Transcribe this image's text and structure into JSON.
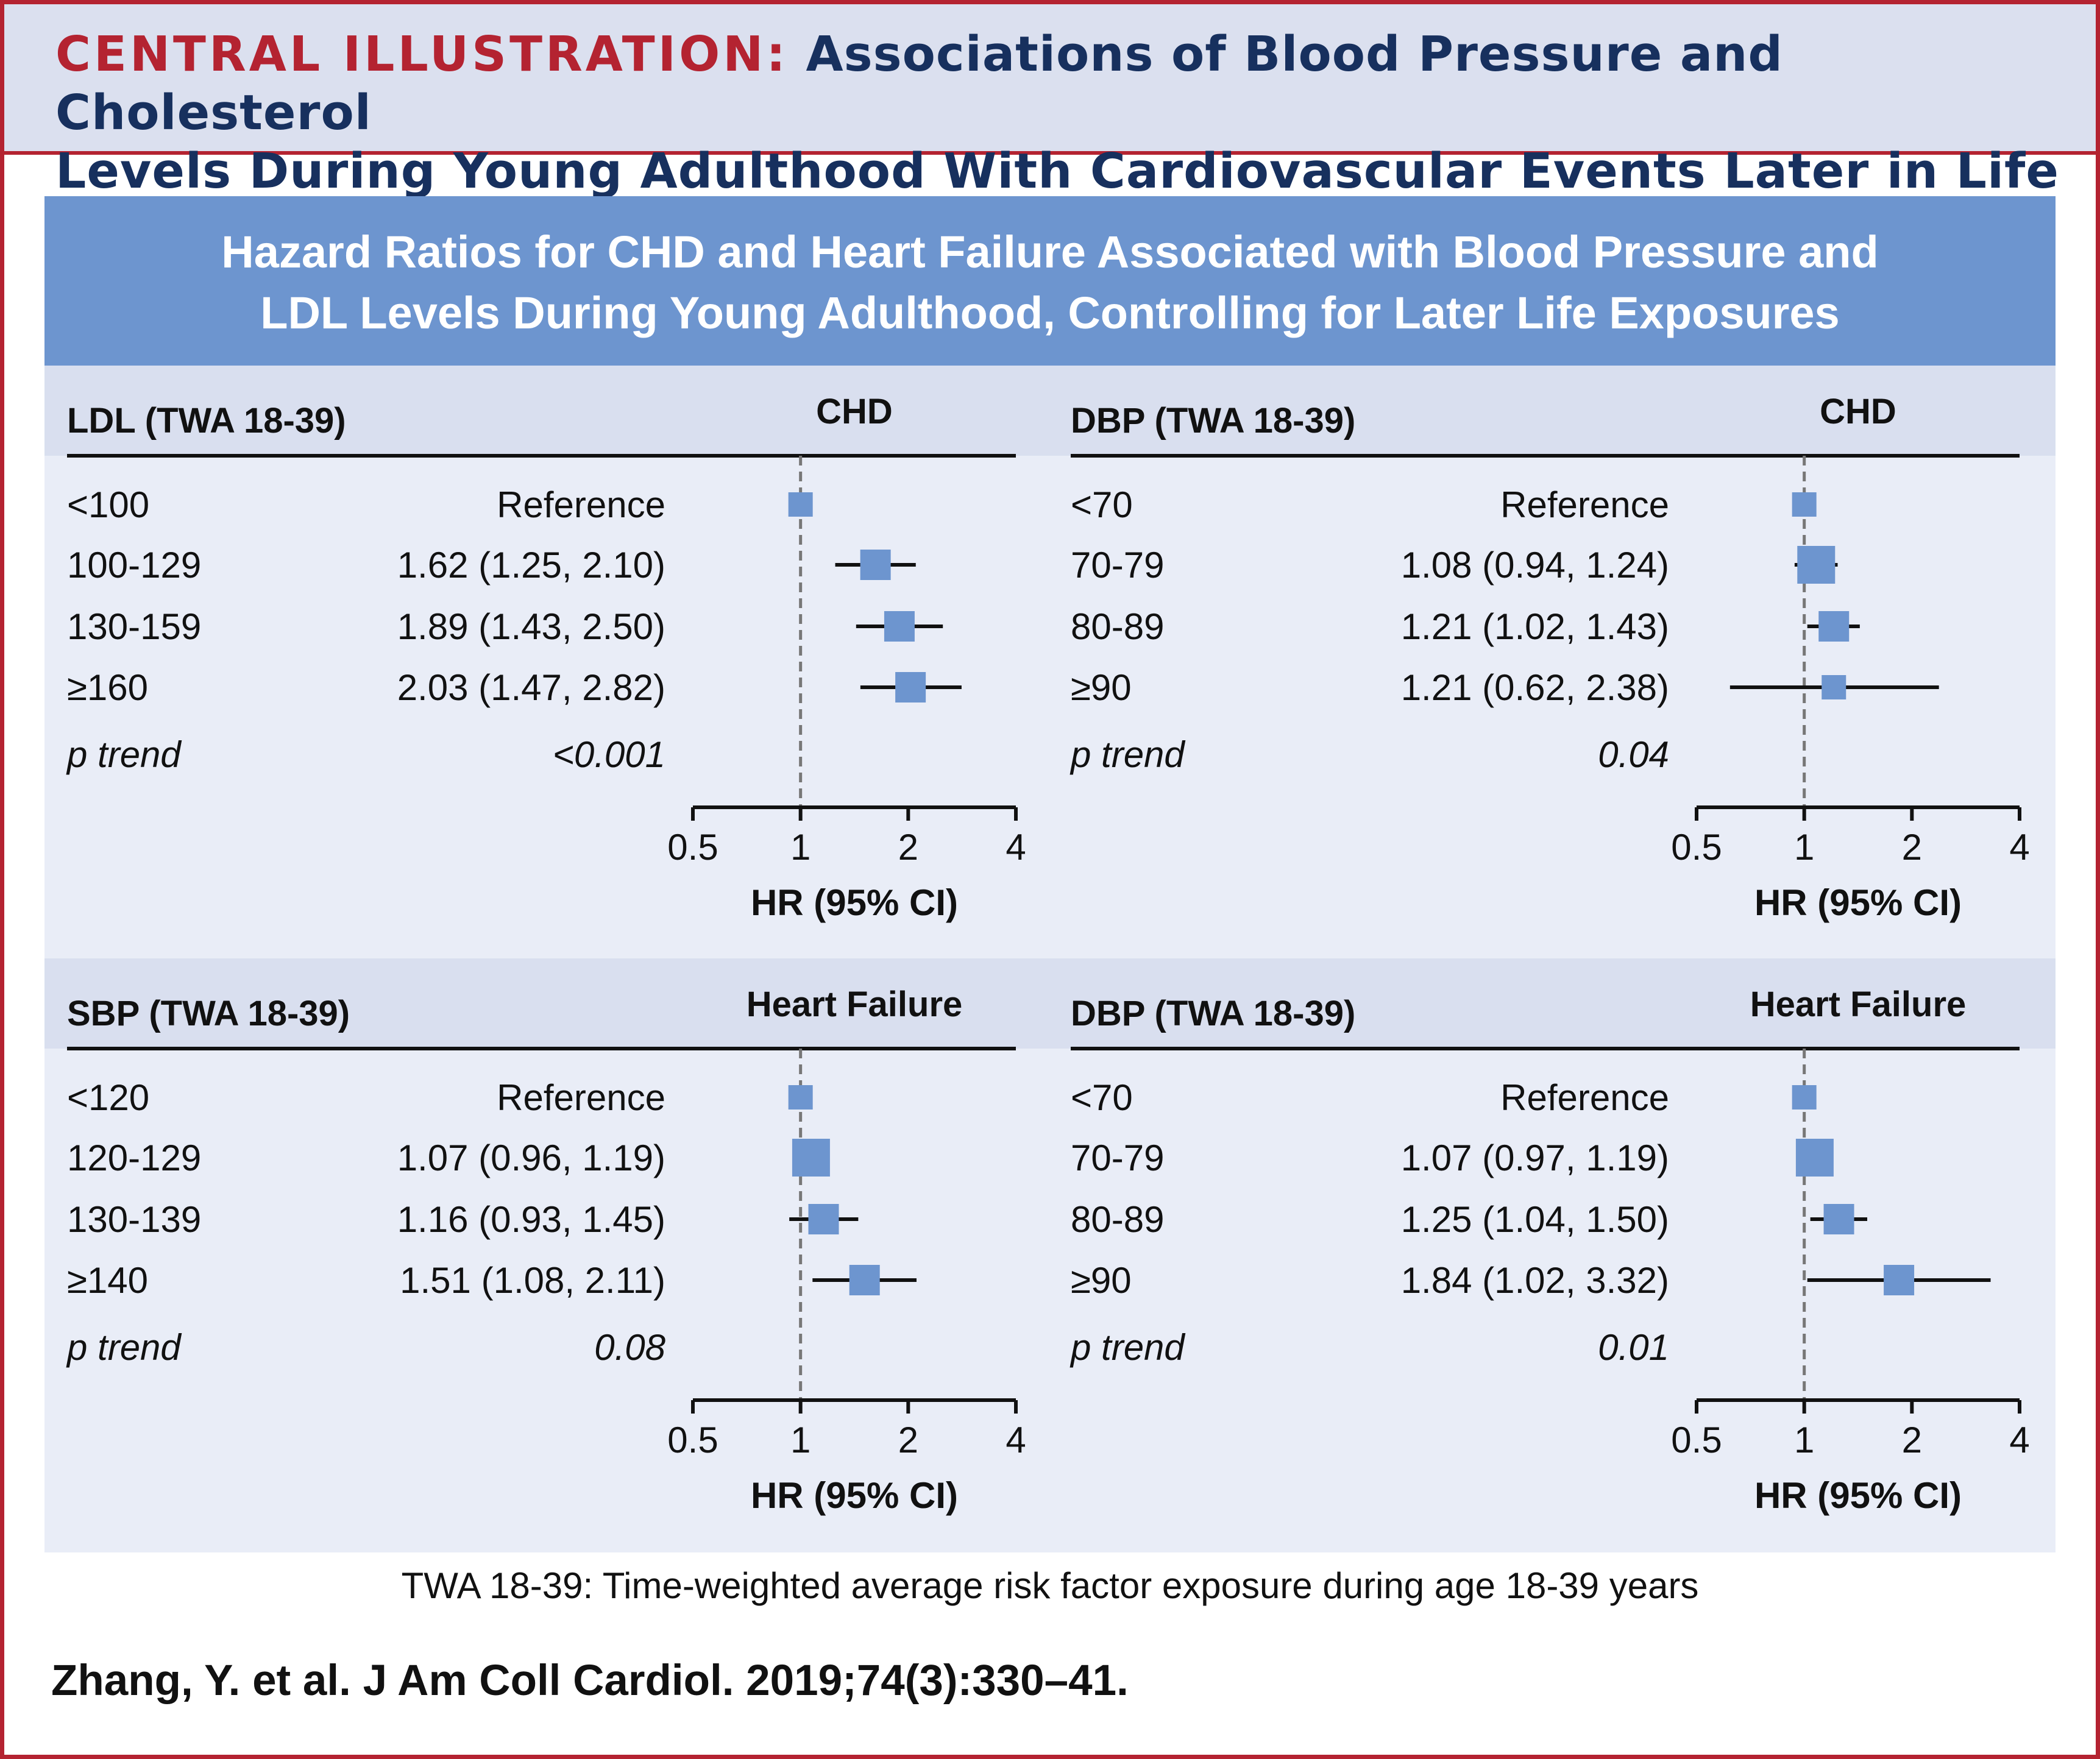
{
  "header": {
    "prefix": "CENTRAL ILLUSTRATION:",
    "title_line1": "Associations of Blood Pressure and Cholesterol",
    "title_line2": "Levels During Young Adulthood With Cardiovascular Events Later in Life"
  },
  "banner": {
    "line1": "Hazard Ratios for CHD and Heart Failure Associated with Blood Pressure and",
    "line2": "LDL Levels During Young Adulthood, Controlling for Later Life Exposures"
  },
  "footnote": "TWA 18-39: Time-weighted average risk factor exposure during age 18-39 years",
  "citation": "Zhang, Y. et al. J Am Coll Cardiol. 2019;74(3):330–41.",
  "colors": {
    "accent_red": "#b42331",
    "navy": "#17305e",
    "banner_blue": "#6d95cf",
    "marker_blue": "#6d95cf"
  },
  "chart_data": [
    {
      "type": "forest",
      "title": "LDL  (TWA 18-39)",
      "outcome": "CHD",
      "xlabel": "HR (95% CI)",
      "xscale": "log",
      "xlim": [
        0.5,
        4
      ],
      "xticks": [
        "0.5",
        "1",
        "2",
        "4"
      ],
      "reference_line": 1,
      "rows": [
        {
          "category": "<100",
          "label": "Reference",
          "hr": 1,
          "lo": null,
          "hi": null,
          "marker": "small"
        },
        {
          "category": "100-129",
          "label": "1.62 (1.25, 2.10)",
          "hr": 1.62,
          "lo": 1.25,
          "hi": 2.1,
          "marker": "medium"
        },
        {
          "category": "130-159",
          "label": "1.89 (1.43, 2.50)",
          "hr": 1.89,
          "lo": 1.43,
          "hi": 2.5,
          "marker": "medium"
        },
        {
          "category": "≥160",
          "label": "2.03 (1.47, 2.82)",
          "hr": 2.03,
          "lo": 1.47,
          "hi": 2.82,
          "marker": "medium"
        }
      ],
      "p_trend_label": "p trend",
      "p_trend": "<0.001"
    },
    {
      "type": "forest",
      "title": "DBP  (TWA 18-39)",
      "outcome": "CHD",
      "xlabel": "HR (95% CI)",
      "xscale": "log",
      "xlim": [
        0.5,
        4
      ],
      "xticks": [
        "0.5",
        "1",
        "2",
        "4"
      ],
      "reference_line": 1,
      "rows": [
        {
          "category": "<70",
          "label": "Reference",
          "hr": 1,
          "lo": null,
          "hi": null,
          "marker": "small"
        },
        {
          "category": "70-79",
          "label": "1.08 (0.94, 1.24)",
          "hr": 1.08,
          "lo": 0.94,
          "hi": 1.24,
          "marker": "large"
        },
        {
          "category": "80-89",
          "label": "1.21 (1.02, 1.43)",
          "hr": 1.21,
          "lo": 1.02,
          "hi": 1.43,
          "marker": "medium"
        },
        {
          "category": "≥90",
          "label": "1.21 (0.62, 2.38)",
          "hr": 1.21,
          "lo": 0.62,
          "hi": 2.38,
          "marker": "small"
        }
      ],
      "p_trend_label": "p trend",
      "p_trend": "0.04"
    },
    {
      "type": "forest",
      "title": "SBP  (TWA 18-39)",
      "outcome": "Heart Failure",
      "xlabel": "HR (95% CI)",
      "xscale": "log",
      "xlim": [
        0.5,
        4
      ],
      "xticks": [
        "0.5",
        "1",
        "2",
        "4"
      ],
      "reference_line": 1,
      "rows": [
        {
          "category": "<120",
          "label": "Reference",
          "hr": 1,
          "lo": null,
          "hi": null,
          "marker": "small"
        },
        {
          "category": "120-129",
          "label": "1.07 (0.96, 1.19)",
          "hr": 1.07,
          "lo": 0.96,
          "hi": 1.19,
          "marker": "large"
        },
        {
          "category": "130-139",
          "label": "1.16 (0.93, 1.45)",
          "hr": 1.16,
          "lo": 0.93,
          "hi": 1.45,
          "marker": "medium"
        },
        {
          "category": "≥140",
          "label": "1.51 (1.08, 2.11)",
          "hr": 1.51,
          "lo": 1.08,
          "hi": 2.11,
          "marker": "medium"
        }
      ],
      "p_trend_label": "p trend",
      "p_trend": "0.08"
    },
    {
      "type": "forest",
      "title": "DBP  (TWA 18-39)",
      "outcome": "Heart Failure",
      "xlabel": "HR (95% CI)",
      "xscale": "log",
      "xlim": [
        0.5,
        4
      ],
      "xticks": [
        "0.5",
        "1",
        "2",
        "4"
      ],
      "reference_line": 1,
      "rows": [
        {
          "category": "<70",
          "label": "Reference",
          "hr": 1,
          "lo": null,
          "hi": null,
          "marker": "small"
        },
        {
          "category": "70-79",
          "label": "1.07 (0.97, 1.19)",
          "hr": 1.07,
          "lo": 0.97,
          "hi": 1.19,
          "marker": "large"
        },
        {
          "category": "80-89",
          "label": "1.25 (1.04, 1.50)",
          "hr": 1.25,
          "lo": 1.04,
          "hi": 1.5,
          "marker": "medium"
        },
        {
          "category": "≥90",
          "label": "1.84 (1.02, 3.32)",
          "hr": 1.84,
          "lo": 1.02,
          "hi": 3.32,
          "marker": "medium"
        }
      ],
      "p_trend_label": "p trend",
      "p_trend": "0.01"
    }
  ]
}
